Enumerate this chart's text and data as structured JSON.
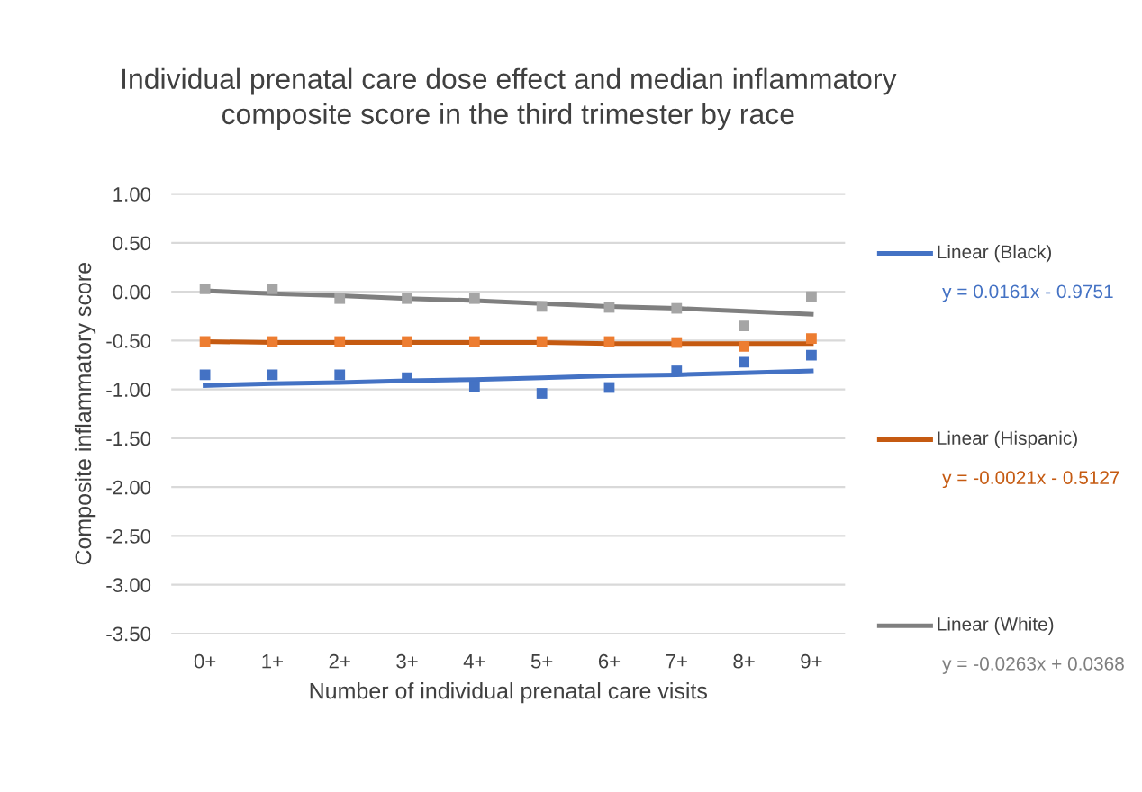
{
  "chart_data": {
    "type": "scatter",
    "title": "Individual prenatal care dose effect and median inflammatory\ncomposite score in the third trimester by race",
    "xlabel": "Number of individual prenatal care visits",
    "ylabel": "Composite inflammatory score",
    "categories": [
      "0+",
      "1+",
      "2+",
      "3+",
      "4+",
      "5+",
      "6+",
      "7+",
      "8+",
      "9+"
    ],
    "series": [
      {
        "color": "#4472c4",
        "marker": "square",
        "values": [
          -0.85,
          -0.85,
          -0.85,
          -0.88,
          -0.97,
          -1.04,
          -0.98,
          -0.81,
          -0.72,
          -0.65
        ]
      },
      {
        "color": "#ed7d31",
        "marker": "square",
        "values": [
          -0.51,
          -0.51,
          -0.51,
          -0.51,
          -0.51,
          -0.51,
          -0.51,
          -0.52,
          -0.56,
          -0.48
        ]
      },
      {
        "color": "#a5a5a5",
        "marker": "square",
        "values": [
          0.03,
          0.03,
          -0.07,
          -0.07,
          -0.07,
          -0.15,
          -0.16,
          -0.17,
          -0.35,
          -0.05
        ]
      },
      {
        "type": "line",
        "name": "Linear (Black)",
        "color": "#4472c4",
        "marker": "none",
        "values": [
          -0.96,
          -0.94,
          -0.93,
          -0.91,
          -0.9,
          -0.88,
          -0.86,
          -0.85,
          -0.83,
          -0.81
        ]
      },
      {
        "type": "line",
        "name": "Linear (Hispanic)",
        "color": "#c55a11",
        "marker": "none",
        "values": [
          -0.51,
          -0.52,
          -0.52,
          -0.52,
          -0.52,
          -0.52,
          -0.53,
          -0.53,
          -0.53,
          -0.53
        ]
      },
      {
        "type": "line",
        "name": "Linear (White)",
        "color": "#7f7f7f",
        "marker": "none",
        "values": [
          0.01,
          -0.02,
          -0.04,
          -0.07,
          -0.09,
          -0.12,
          -0.15,
          -0.17,
          -0.2,
          -0.23
        ]
      }
    ],
    "annotations": [
      "y = 0.0161x - 0.9751",
      "y = -0.0021x - 0.5127",
      "y = -0.0263x + 0.0368"
    ],
    "ylim": [
      -3.5,
      1
    ],
    "yticks": [
      {
        "value": 1,
        "label": "1.00"
      },
      {
        "value": 0.5,
        "label": "0.50"
      },
      {
        "value": 0,
        "label": "0.00"
      },
      {
        "value": -0.5,
        "label": "-0.50"
      },
      {
        "value": -1,
        "label": "-1.00"
      },
      {
        "value": -1.5,
        "label": "-1.50"
      },
      {
        "value": -2,
        "label": "-2.00"
      },
      {
        "value": -2.5,
        "label": "-2.50"
      },
      {
        "value": -3,
        "label": "-3.00"
      },
      {
        "value": -3.5,
        "label": "-3.50"
      }
    ],
    "grid": "y",
    "legend": "right"
  }
}
